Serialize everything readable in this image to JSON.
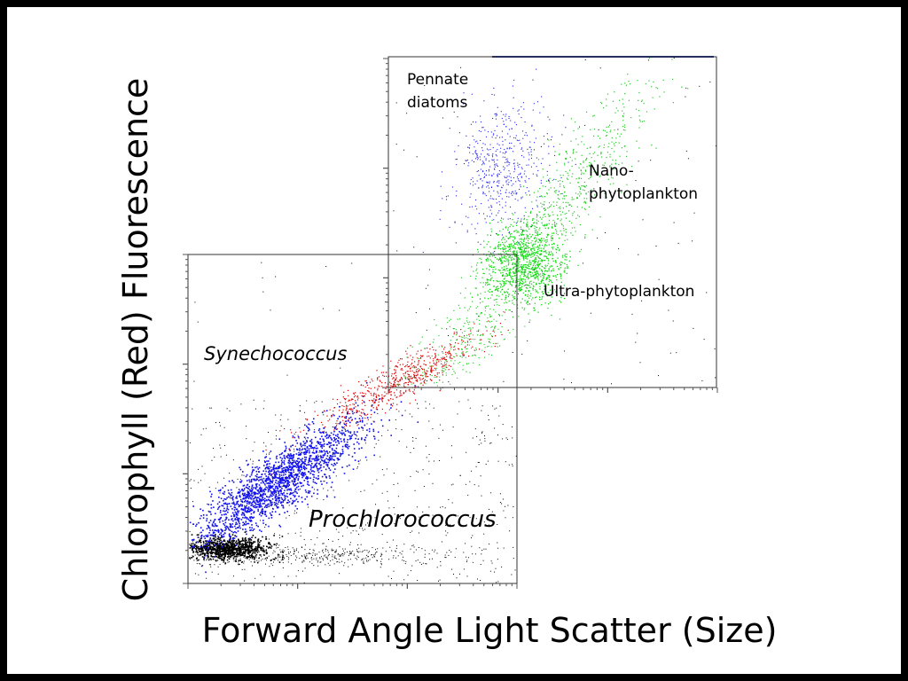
{
  "slide": {
    "y_axis_label": "Chlorophyll (Red) Fluorescence",
    "x_axis_label": "Forward Angle Light Scatter (Size)",
    "labels": {
      "pennate": [
        "Pennate",
        "diatoms"
      ],
      "nano": [
        "Nano-",
        "phytoplankton"
      ],
      "ultra": "Ultra-phytoplankton",
      "synechococcus": "Synechococcus",
      "prochlorococcus": "Prochlorococcus"
    }
  }
}
